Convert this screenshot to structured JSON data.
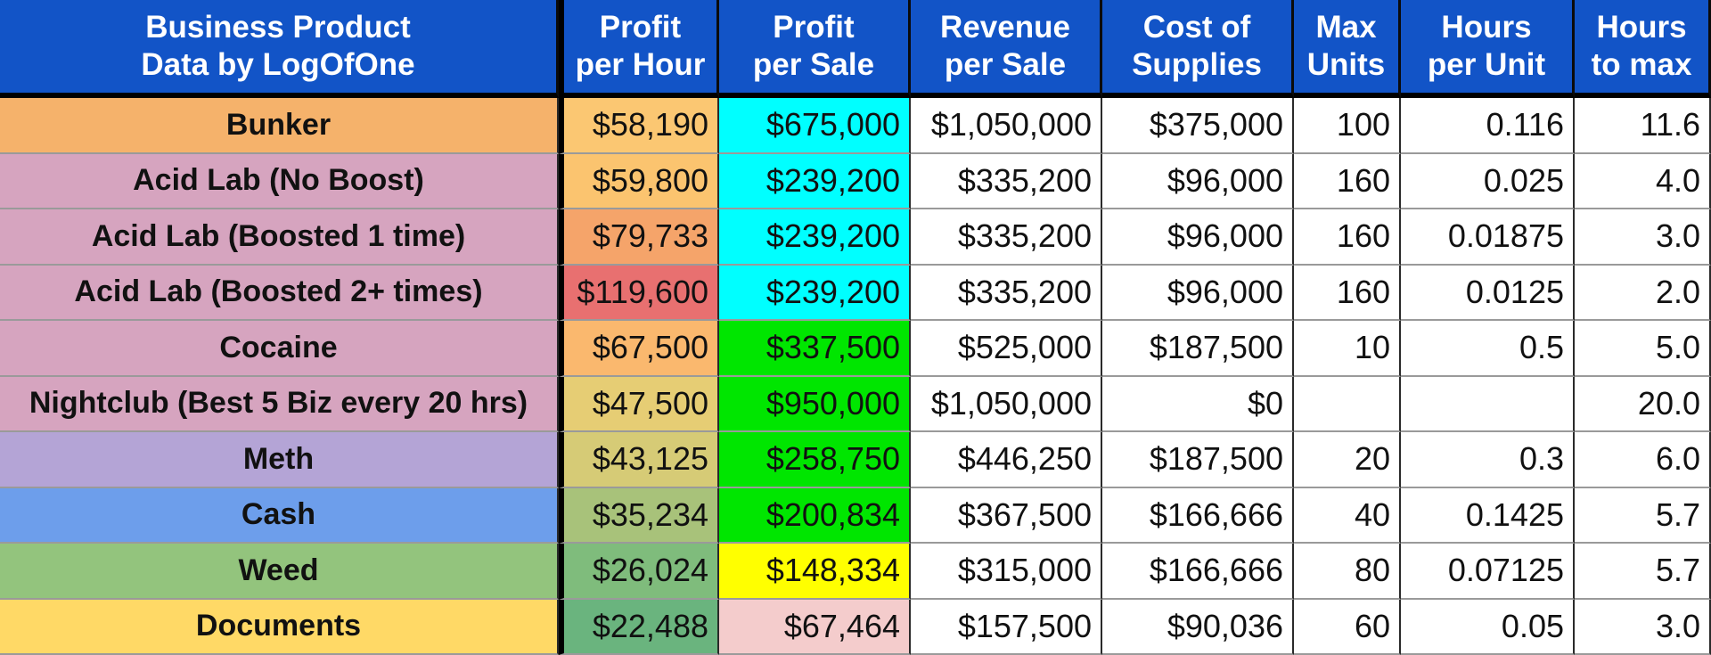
{
  "headers": {
    "product": "Business Product\nData by LogOfOne",
    "profit_per_hour": "Profit\nper Hour",
    "profit_per_sale": "Profit\nper Sale",
    "revenue_per_sale": "Revenue\nper Sale",
    "cost_of_supplies": "Cost of\nSupplies",
    "max_units": "Max\nUnits",
    "hours_per_unit": "Hours\nper Unit",
    "hours_to_max": "Hours\nto max"
  },
  "colors": {
    "header_bg": "#1254c7"
  },
  "rows": [
    {
      "name": "Bunker",
      "name_bg": "#f5b26b",
      "profit_per_hour": "$58,190",
      "pph_bg": "#fbc772",
      "profit_per_sale": "$675,000",
      "pps_bg": "#00ffff",
      "revenue_per_sale": "$1,050,000",
      "cost_of_supplies": "$375,000",
      "max_units": "100",
      "hours_per_unit": "0.116",
      "hours_to_max": "11.6"
    },
    {
      "name": "Acid Lab (No Boost)",
      "name_bg": "#d6a4bf",
      "profit_per_hour": "$59,800",
      "pph_bg": "#fbc46f",
      "profit_per_sale": "$239,200",
      "pps_bg": "#00ffff",
      "revenue_per_sale": "$335,200",
      "cost_of_supplies": "$96,000",
      "max_units": "160",
      "hours_per_unit": "0.025",
      "hours_to_max": "4.0"
    },
    {
      "name": "Acid Lab (Boosted 1 time)",
      "name_bg": "#d6a4bf",
      "profit_per_hour": "$79,733",
      "pph_bg": "#f5a46a",
      "profit_per_sale": "$239,200",
      "pps_bg": "#00ffff",
      "revenue_per_sale": "$335,200",
      "cost_of_supplies": "$96,000",
      "max_units": "160",
      "hours_per_unit": "0.01875",
      "hours_to_max": "3.0"
    },
    {
      "name": "Acid Lab (Boosted 2+ times)",
      "name_bg": "#d6a4bf",
      "profit_per_hour": "$119,600",
      "pph_bg": "#e87070",
      "profit_per_sale": "$239,200",
      "pps_bg": "#00ffff",
      "revenue_per_sale": "$335,200",
      "cost_of_supplies": "$96,000",
      "max_units": "160",
      "hours_per_unit": "0.0125",
      "hours_to_max": "2.0"
    },
    {
      "name": "Cocaine",
      "name_bg": "#d6a4bf",
      "profit_per_hour": "$67,500",
      "pph_bg": "#fab86e",
      "profit_per_sale": "$337,500",
      "pps_bg": "#00e600",
      "revenue_per_sale": "$525,000",
      "cost_of_supplies": "$187,500",
      "max_units": "10",
      "hours_per_unit": "0.5",
      "hours_to_max": "5.0"
    },
    {
      "name": "Nightclub (Best 5 Biz every 20 hrs)",
      "name_bg": "#d6a4bf",
      "profit_per_hour": "$47,500",
      "pph_bg": "#e6cd74",
      "profit_per_sale": "$950,000",
      "pps_bg": "#00e600",
      "revenue_per_sale": "$1,050,000",
      "cost_of_supplies": "$0",
      "max_units": "",
      "hours_per_unit": "",
      "hours_to_max": "20.0"
    },
    {
      "name": "Meth",
      "name_bg": "#b4a4d6",
      "profit_per_hour": "$43,125",
      "pph_bg": "#d6cb76",
      "profit_per_sale": "$258,750",
      "pps_bg": "#00e600",
      "revenue_per_sale": "$446,250",
      "cost_of_supplies": "$187,500",
      "max_units": "20",
      "hours_per_unit": "0.3",
      "hours_to_max": "6.0"
    },
    {
      "name": "Cash",
      "name_bg": "#6d9eeb",
      "profit_per_hour": "$35,234",
      "pph_bg": "#a8c27a",
      "profit_per_sale": "$200,834",
      "pps_bg": "#00e600",
      "revenue_per_sale": "$367,500",
      "cost_of_supplies": "$166,666",
      "max_units": "40",
      "hours_per_unit": "0.1425",
      "hours_to_max": "5.7"
    },
    {
      "name": "Weed",
      "name_bg": "#93c47d",
      "profit_per_hour": "$26,024",
      "pph_bg": "#7fbc7c",
      "profit_per_sale": "$148,334",
      "pps_bg": "#ffff00",
      "revenue_per_sale": "$315,000",
      "cost_of_supplies": "$166,666",
      "max_units": "80",
      "hours_per_unit": "0.07125",
      "hours_to_max": "5.7"
    },
    {
      "name": "Documents",
      "name_bg": "#ffd966",
      "profit_per_hour": "$22,488",
      "pph_bg": "#6ab47e",
      "profit_per_sale": "$67,464",
      "pps_bg": "#f4cccc",
      "revenue_per_sale": "$157,500",
      "cost_of_supplies": "$90,036",
      "max_units": "60",
      "hours_per_unit": "0.05",
      "hours_to_max": "3.0"
    }
  ]
}
